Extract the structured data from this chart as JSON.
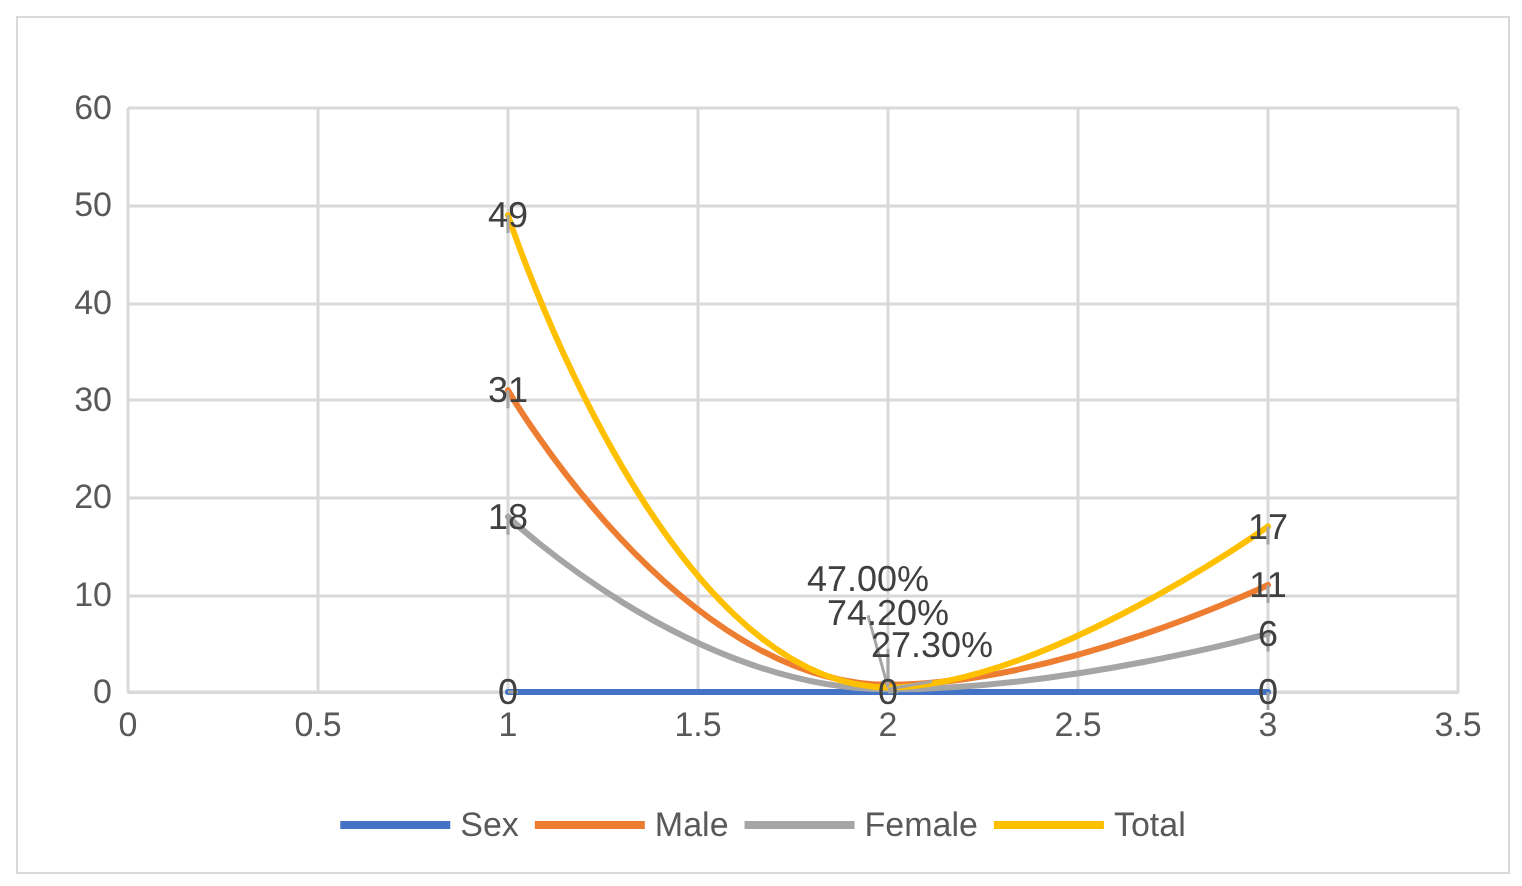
{
  "chart_data": {
    "type": "line",
    "x": [
      1,
      2,
      3
    ],
    "xlim": [
      0,
      3.5
    ],
    "xticks": [
      0,
      0.5,
      1,
      1.5,
      2,
      2.5,
      3,
      3.5
    ],
    "ylim": [
      0,
      60
    ],
    "yticks": [
      0,
      10,
      20,
      30,
      40,
      50,
      60
    ],
    "grid": true,
    "legend": "bottom",
    "marker": "none",
    "line_style": "solid",
    "series": [
      {
        "name": "Sex",
        "color": "#4472c4",
        "values": [
          0,
          0,
          0
        ],
        "value_labels": [
          "0",
          "0",
          "0"
        ]
      },
      {
        "name": "Male",
        "color": "#ed7d31",
        "values": [
          31,
          0.742,
          11
        ],
        "value_labels": [
          "31",
          "74.20%",
          "11"
        ]
      },
      {
        "name": "Female",
        "color": "#a5a5a5",
        "values": [
          18,
          0.273,
          6
        ],
        "value_labels": [
          "18",
          "27.30%",
          "6"
        ]
      },
      {
        "name": "Total",
        "color": "#ffc000",
        "values": [
          49,
          0.47,
          17
        ],
        "value_labels": [
          "49",
          "47.00%",
          "17"
        ]
      }
    ]
  }
}
